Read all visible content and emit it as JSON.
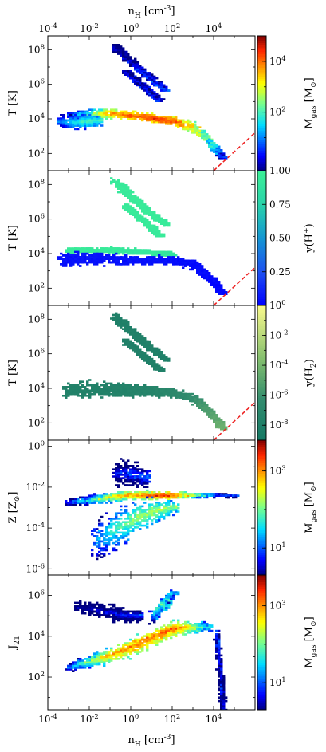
{
  "chart_data": {
    "type": "heatmap",
    "shared_x": {
      "label": "n_H [cm^-3]",
      "scale": "log",
      "range": [
        -4,
        6
      ],
      "ticks": [
        {
          "value": -4,
          "label": "10^-4"
        },
        {
          "value": -2,
          "label": "10^-2"
        },
        {
          "value": 0,
          "label": "10^0"
        },
        {
          "value": 2,
          "label": "10^2"
        },
        {
          "value": 4,
          "label": "10^4"
        }
      ]
    },
    "reference_line": {
      "style": "dashed",
      "color": "#ee2222",
      "x": [
        4.0,
        6.0
      ],
      "y": [
        1.0,
        3.2
      ],
      "panels": [
        0,
        1,
        2
      ]
    },
    "panels": [
      {
        "id": "T-mass",
        "ylabel": "T [K]",
        "yscale": "log",
        "yrange": [
          1.0,
          8.8
        ],
        "yticks": [
          {
            "value": 2,
            "label": "10^2"
          },
          {
            "value": 4,
            "label": "10^4"
          },
          {
            "value": 6,
            "label": "10^6"
          },
          {
            "value": 8,
            "label": "10^8"
          }
        ],
        "colorbar": {
          "label": "M_gas [M_sun]",
          "colormap": "jet",
          "scale": "log",
          "range": [
            -0.3,
            5.0
          ],
          "ticks": [
            {
              "value": 2,
              "label": "10^2"
            },
            {
              "value": 4,
              "label": "10^4"
            }
          ]
        },
        "regions": [
          {
            "kind": "band",
            "pts": [
              [
                -3.0,
                4.25,
                0.22,
                1.0
              ],
              [
                -2.0,
                4.3,
                0.32,
                2.2
              ],
              [
                -1.0,
                4.35,
                0.32,
                3.8
              ],
              [
                0.0,
                4.25,
                0.3,
                4.2
              ],
              [
                1.0,
                4.1,
                0.3,
                4.5
              ],
              [
                2.0,
                3.95,
                0.34,
                4.4
              ],
              [
                3.0,
                3.55,
                0.3,
                3.6
              ],
              [
                3.6,
                2.95,
                0.22,
                2.8
              ],
              [
                4.1,
                2.25,
                0.14,
                1.8
              ],
              [
                4.4,
                1.75,
                0.08,
                0.8
              ]
            ]
          },
          {
            "kind": "band",
            "pts": [
              [
                -3.4,
                3.9,
                0.45,
                1.0
              ],
              [
                -2.8,
                3.85,
                0.5,
                1.6
              ],
              [
                -2.2,
                3.9,
                0.5,
                2.0
              ],
              [
                -1.6,
                3.95,
                0.4,
                2.0
              ]
            ]
          },
          {
            "kind": "band",
            "pts": [
              [
                -0.8,
                8.2,
                0.35,
                0.2
              ],
              [
                -0.2,
                7.55,
                0.25,
                0.4
              ],
              [
                0.4,
                6.9,
                0.22,
                0.6
              ],
              [
                1.0,
                6.3,
                0.2,
                0.8
              ],
              [
                1.7,
                5.7,
                0.16,
                0.9
              ]
            ]
          },
          {
            "kind": "band",
            "pts": [
              [
                -0.3,
                6.8,
                0.15,
                0.3
              ],
              [
                0.3,
                6.2,
                0.14,
                0.5
              ],
              [
                0.9,
                5.6,
                0.12,
                0.6
              ],
              [
                1.4,
                5.05,
                0.1,
                0.6
              ]
            ]
          }
        ]
      },
      {
        "id": "T-H+",
        "ylabel": "T [K]",
        "yscale": "log",
        "yrange": [
          1.0,
          8.8
        ],
        "yticks": [
          {
            "value": 2,
            "label": "10^2"
          },
          {
            "value": 4,
            "label": "10^4"
          },
          {
            "value": 6,
            "label": "10^6"
          },
          {
            "value": 8,
            "label": "10^8"
          }
        ],
        "colorbar": {
          "label": "y(H^+)",
          "colormap": "ion",
          "scale": "linear",
          "range": [
            0,
            1
          ],
          "ticks": [
            {
              "value": 0.25,
              "label": "0.25"
            },
            {
              "value": 0.5,
              "label": "0.50"
            },
            {
              "value": 0.75,
              "label": "0.75"
            },
            {
              "value": 1.0,
              "label": "1.00"
            }
          ]
        },
        "regions": [
          {
            "kind": "band",
            "pts": [
              [
                -3.0,
                4.2,
                0.2,
                0.95
              ],
              [
                -2.0,
                4.25,
                0.2,
                0.95
              ],
              [
                -1.0,
                4.25,
                0.2,
                0.95
              ],
              [
                0.0,
                4.2,
                0.2,
                0.93
              ],
              [
                1.0,
                4.1,
                0.2,
                0.92
              ],
              [
                2.0,
                4.0,
                0.2,
                0.9
              ]
            ]
          },
          {
            "kind": "band",
            "pts": [
              [
                -3.4,
                3.7,
                0.45,
                0.05
              ],
              [
                -2.6,
                3.75,
                0.5,
                0.05
              ],
              [
                -1.6,
                3.75,
                0.45,
                0.05
              ],
              [
                -0.5,
                3.7,
                0.35,
                0.05
              ],
              [
                0.8,
                3.65,
                0.3,
                0.05
              ],
              [
                2.0,
                3.7,
                0.3,
                0.04
              ],
              [
                3.0,
                3.4,
                0.3,
                0.03
              ],
              [
                3.6,
                2.85,
                0.22,
                0.03
              ],
              [
                4.1,
                2.2,
                0.14,
                0.02
              ],
              [
                4.4,
                1.7,
                0.08,
                0.02
              ]
            ]
          },
          {
            "kind": "band",
            "pts": [
              [
                -0.8,
                8.2,
                0.35,
                0.95
              ],
              [
                -0.2,
                7.55,
                0.25,
                0.95
              ],
              [
                0.4,
                6.9,
                0.22,
                0.95
              ],
              [
                1.0,
                6.3,
                0.2,
                0.95
              ],
              [
                1.7,
                5.7,
                0.16,
                0.95
              ]
            ]
          },
          {
            "kind": "band",
            "pts": [
              [
                -0.3,
                6.8,
                0.15,
                0.95
              ],
              [
                0.3,
                6.2,
                0.14,
                0.95
              ],
              [
                0.9,
                5.6,
                0.12,
                0.95
              ],
              [
                1.4,
                5.05,
                0.1,
                0.95
              ]
            ]
          }
        ]
      },
      {
        "id": "T-H2",
        "ylabel": "T [K]",
        "yscale": "log",
        "yrange": [
          1.0,
          8.8
        ],
        "yticks": [
          {
            "value": 2,
            "label": "10^2"
          },
          {
            "value": 4,
            "label": "10^4"
          },
          {
            "value": 6,
            "label": "10^6"
          },
          {
            "value": 8,
            "label": "10^8"
          }
        ],
        "colorbar": {
          "label": "y(H_2)",
          "colormap": "summer",
          "scale": "log",
          "range": [
            -9,
            0
          ],
          "ticks": [
            {
              "value": -8,
              "label": "10^-8"
            },
            {
              "value": -6,
              "label": "10^-6"
            },
            {
              "value": -4,
              "label": "10^-4"
            },
            {
              "value": -2,
              "label": "10^-2"
            },
            {
              "value": 0,
              "label": "10^0"
            }
          ]
        },
        "regions": [
          {
            "kind": "band",
            "pts": [
              [
                -3.2,
                3.9,
                0.55,
                -7.8
              ],
              [
                -2.2,
                4.0,
                0.6,
                -7.8
              ],
              [
                -1.0,
                4.0,
                0.55,
                -7.7
              ],
              [
                0.0,
                3.95,
                0.45,
                -7.6
              ],
              [
                1.0,
                3.9,
                0.4,
                -7.4
              ],
              [
                2.0,
                3.8,
                0.35,
                -6.9
              ],
              [
                3.0,
                3.45,
                0.3,
                -6.2
              ],
              [
                3.6,
                2.85,
                0.22,
                -5.5
              ],
              [
                4.1,
                2.2,
                0.14,
                -4.8
              ],
              [
                4.4,
                1.7,
                0.08,
                -4.3
              ]
            ]
          },
          {
            "kind": "band",
            "pts": [
              [
                -0.8,
                8.2,
                0.35,
                -7.9
              ],
              [
                -0.2,
                7.55,
                0.25,
                -7.9
              ],
              [
                0.4,
                6.9,
                0.22,
                -7.9
              ],
              [
                1.0,
                6.3,
                0.2,
                -7.9
              ],
              [
                1.7,
                5.7,
                0.16,
                -7.9
              ]
            ]
          },
          {
            "kind": "band",
            "pts": [
              [
                -0.3,
                6.8,
                0.15,
                -7.9
              ],
              [
                0.3,
                6.2,
                0.14,
                -7.9
              ],
              [
                0.9,
                5.6,
                0.12,
                -7.9
              ],
              [
                1.4,
                5.05,
                0.1,
                -7.9
              ]
            ]
          }
        ]
      },
      {
        "id": "Z-mass",
        "ylabel": "Z [Z_sun]",
        "yscale": "log",
        "yrange": [
          -6.3,
          0.3
        ],
        "yticks": [
          {
            "value": -6,
            "label": "10^-6"
          },
          {
            "value": -4,
            "label": "10^-4"
          },
          {
            "value": -2,
            "label": "10^-2"
          },
          {
            "value": 0,
            "label": "10^0"
          }
        ],
        "colorbar": {
          "label": "M_gas [M_sun]",
          "colormap": "jet",
          "scale": "log",
          "range": [
            0.3,
            3.8
          ],
          "ticks": [
            {
              "value": 1,
              "label": "10^1"
            },
            {
              "value": 3,
              "label": "10^3"
            }
          ]
        },
        "regions": [
          {
            "kind": "band",
            "pts": [
              [
                -3.0,
                -2.7,
                0.18,
                1.0
              ],
              [
                -2.0,
                -2.6,
                0.25,
                1.8
              ],
              [
                -1.0,
                -2.45,
                0.28,
                2.6
              ],
              [
                0.0,
                -2.35,
                0.26,
                3.0
              ],
              [
                1.0,
                -2.35,
                0.24,
                3.3
              ],
              [
                2.0,
                -2.35,
                0.2,
                3.6
              ],
              [
                3.0,
                -2.35,
                0.14,
                2.6
              ],
              [
                4.0,
                -2.35,
                0.1,
                1.6
              ],
              [
                5.0,
                -2.4,
                0.05,
                1.0
              ]
            ]
          },
          {
            "kind": "band",
            "pts": [
              [
                -1.8,
                -4.6,
                1.6,
                1.2
              ],
              [
                -0.8,
                -4.0,
                1.5,
                1.8
              ],
              [
                0.2,
                -3.5,
                1.1,
                2.2
              ],
              [
                1.2,
                -3.1,
                0.7,
                2.4
              ],
              [
                2.2,
                -2.9,
                0.4,
                2.2
              ]
            ]
          },
          {
            "kind": "band",
            "pts": [
              [
                -0.8,
                -1.3,
                0.9,
                0.6
              ],
              [
                0.0,
                -1.3,
                0.8,
                1.0
              ],
              [
                0.8,
                -1.5,
                0.6,
                1.2
              ]
            ]
          }
        ]
      },
      {
        "id": "J21-mass",
        "ylabel": "J_21",
        "yscale": "log",
        "yrange": [
          0.4,
          7.0
        ],
        "yticks": [
          {
            "value": 2,
            "label": "10^2"
          },
          {
            "value": 4,
            "label": "10^4"
          },
          {
            "value": 6,
            "label": "10^6"
          }
        ],
        "colorbar": {
          "label": "M_gas [M_sun]",
          "colormap": "jet",
          "scale": "log",
          "range": [
            0.3,
            3.8
          ],
          "ticks": [
            {
              "value": 1,
              "label": "10^1"
            },
            {
              "value": 3,
              "label": "10^3"
            }
          ]
        },
        "regions": [
          {
            "kind": "band",
            "pts": [
              [
                -3.0,
                2.5,
                0.2,
                1.2
              ],
              [
                -2.0,
                2.8,
                0.4,
                2.2
              ],
              [
                -1.0,
                3.1,
                0.5,
                2.9
              ],
              [
                0.0,
                3.5,
                0.55,
                3.1
              ],
              [
                1.0,
                3.95,
                0.55,
                3.2
              ],
              [
                2.0,
                4.4,
                0.5,
                3.3
              ],
              [
                3.0,
                4.5,
                0.4,
                2.6
              ],
              [
                3.8,
                4.5,
                0.25,
                1.6
              ]
            ]
          },
          {
            "kind": "band",
            "pts": [
              [
                -2.6,
                5.5,
                0.35,
                0.5
              ],
              [
                -1.5,
                5.3,
                0.5,
                0.6
              ],
              [
                -0.5,
                5.1,
                0.45,
                0.8
              ],
              [
                0.5,
                5.05,
                0.35,
                1.0
              ]
            ]
          },
          {
            "kind": "band",
            "pts": [
              [
                1.0,
                5.0,
                0.4,
                1.5
              ],
              [
                1.6,
                5.6,
                0.35,
                2.0
              ],
              [
                2.1,
                6.2,
                0.2,
                1.6
              ]
            ]
          },
          {
            "kind": "vband",
            "pts": [
              [
                4.1,
                4.0,
                0.12,
                1.2
              ],
              [
                4.2,
                3.0,
                0.14,
                1.0
              ],
              [
                4.3,
                2.0,
                0.15,
                0.9
              ],
              [
                4.35,
                1.0,
                0.15,
                0.8
              ],
              [
                4.4,
                0.5,
                0.15,
                0.7
              ]
            ]
          }
        ]
      }
    ]
  }
}
